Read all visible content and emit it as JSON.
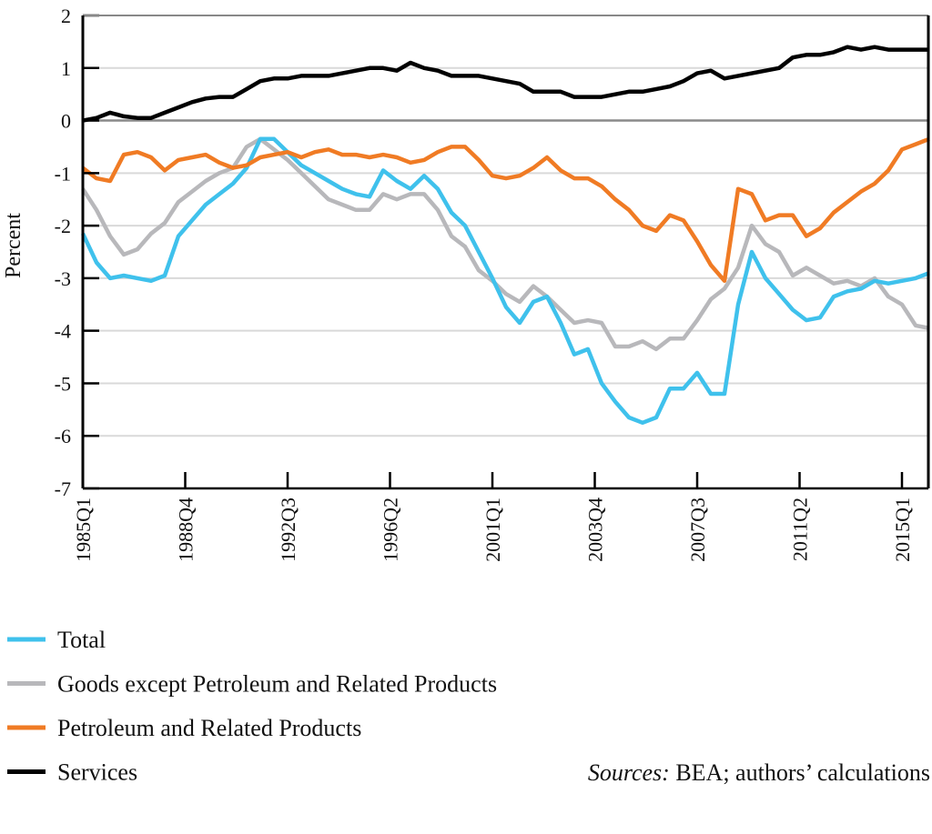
{
  "chart_data": {
    "type": "line",
    "title": "",
    "ylabel": "Percent",
    "xlabel": "",
    "ylim": [
      -7,
      2
    ],
    "yticks": [
      "2",
      "1",
      "0",
      "-1",
      "-2",
      "-3",
      "-4",
      "-5",
      "-6",
      "-7"
    ],
    "xticks": [
      "1985Q1",
      "1988Q4",
      "1992Q3",
      "1996Q2",
      "2001Q1",
      "2003Q4",
      "2007Q3",
      "2011Q2",
      "2015Q1"
    ],
    "grid": true,
    "legend_position": "bottom-left",
    "source_prefix": "Sources:",
    "source_text": " BEA; authors’ calculations",
    "x": [
      "1985Q1",
      "1985Q3",
      "1986Q1",
      "1986Q3",
      "1987Q1",
      "1987Q3",
      "1988Q1",
      "1988Q3",
      "1989Q1",
      "1989Q3",
      "1990Q1",
      "1990Q3",
      "1991Q1",
      "1991Q3",
      "1992Q1",
      "1992Q3",
      "1993Q1",
      "1993Q3",
      "1994Q1",
      "1994Q3",
      "1995Q1",
      "1995Q3",
      "1996Q1",
      "1996Q3",
      "1997Q1",
      "1997Q3",
      "1998Q1",
      "1998Q3",
      "1999Q1",
      "1999Q3",
      "2000Q1",
      "2000Q3",
      "2001Q1",
      "2001Q3",
      "2002Q1",
      "2002Q3",
      "2003Q1",
      "2003Q3",
      "2004Q1",
      "2004Q3",
      "2005Q1",
      "2005Q3",
      "2006Q1",
      "2006Q3",
      "2007Q1",
      "2007Q3",
      "2008Q1",
      "2008Q3",
      "2009Q1",
      "2009Q3",
      "2010Q1",
      "2010Q3",
      "2011Q1",
      "2011Q3",
      "2012Q1",
      "2012Q3",
      "2013Q1",
      "2013Q3",
      "2014Q1",
      "2014Q3",
      "2015Q1",
      "2015Q3",
      "2016Q1"
    ],
    "series": [
      {
        "name": "Total",
        "color": "#3fc1ec",
        "values": [
          -2.15,
          -2.7,
          -3.0,
          -2.95,
          -3.0,
          -3.05,
          -2.95,
          -2.2,
          -1.9,
          -1.6,
          -1.4,
          -1.2,
          -0.9,
          -0.35,
          -0.35,
          -0.6,
          -0.85,
          -1.0,
          -1.15,
          -1.3,
          -1.4,
          -1.45,
          -0.95,
          -1.15,
          -1.3,
          -1.05,
          -1.3,
          -1.75,
          -2.0,
          -2.5,
          -3.0,
          -3.55,
          -3.85,
          -3.45,
          -3.35,
          -3.85,
          -4.45,
          -4.35,
          -5.0,
          -5.35,
          -5.65,
          -5.75,
          -5.65,
          -5.1,
          -5.1,
          -4.8,
          -5.2,
          -5.2,
          -3.5,
          -2.5,
          -3.0,
          -3.3,
          -3.6,
          -3.8,
          -3.75,
          -3.35,
          -3.25,
          -3.2,
          -3.05,
          -3.1,
          -3.05,
          -3.0,
          -2.9
        ]
      },
      {
        "name": "Goods except Petroleum and Related Products",
        "color": "#b8b8bb",
        "values": [
          -1.3,
          -1.7,
          -2.2,
          -2.55,
          -2.45,
          -2.15,
          -1.95,
          -1.55,
          -1.35,
          -1.15,
          -1.0,
          -0.9,
          -0.5,
          -0.35,
          -0.55,
          -0.75,
          -1.0,
          -1.25,
          -1.5,
          -1.6,
          -1.7,
          -1.7,
          -1.4,
          -1.5,
          -1.4,
          -1.4,
          -1.7,
          -2.2,
          -2.4,
          -2.85,
          -3.05,
          -3.3,
          -3.45,
          -3.15,
          -3.35,
          -3.6,
          -3.85,
          -3.8,
          -3.85,
          -4.3,
          -4.3,
          -4.2,
          -4.35,
          -4.15,
          -4.15,
          -3.8,
          -3.4,
          -3.2,
          -2.8,
          -2.0,
          -2.35,
          -2.5,
          -2.95,
          -2.8,
          -2.95,
          -3.1,
          -3.05,
          -3.15,
          -3.0,
          -3.35,
          -3.5,
          -3.9,
          -3.95
        ]
      },
      {
        "name": "Petroleum and Related Products",
        "color": "#f07b24",
        "values": [
          -0.9,
          -1.1,
          -1.15,
          -0.65,
          -0.6,
          -0.7,
          -0.95,
          -0.75,
          -0.7,
          -0.65,
          -0.8,
          -0.9,
          -0.85,
          -0.7,
          -0.65,
          -0.6,
          -0.7,
          -0.6,
          -0.55,
          -0.65,
          -0.65,
          -0.7,
          -0.65,
          -0.7,
          -0.8,
          -0.75,
          -0.6,
          -0.5,
          -0.5,
          -0.75,
          -1.05,
          -1.1,
          -1.05,
          -0.9,
          -0.7,
          -0.95,
          -1.1,
          -1.1,
          -1.25,
          -1.5,
          -1.7,
          -2.0,
          -2.1,
          -1.8,
          -1.9,
          -2.3,
          -2.75,
          -3.05,
          -1.3,
          -1.4,
          -1.9,
          -1.8,
          -1.8,
          -2.2,
          -2.05,
          -1.75,
          -1.55,
          -1.35,
          -1.2,
          -0.95,
          -0.55,
          -0.45,
          -0.35
        ]
      },
      {
        "name": "Services",
        "color": "#000000",
        "values": [
          0,
          0.05,
          0.15,
          0.08,
          0.05,
          0.05,
          0.15,
          0.25,
          0.35,
          0.42,
          0.45,
          0.45,
          0.6,
          0.75,
          0.8,
          0.8,
          0.85,
          0.85,
          0.85,
          0.9,
          0.95,
          1.0,
          1.0,
          0.95,
          1.1,
          1.0,
          0.95,
          0.85,
          0.85,
          0.85,
          0.8,
          0.75,
          0.7,
          0.55,
          0.55,
          0.55,
          0.45,
          0.45,
          0.45,
          0.5,
          0.55,
          0.55,
          0.6,
          0.65,
          0.75,
          0.9,
          0.95,
          0.8,
          0.85,
          0.9,
          0.95,
          1.0,
          1.2,
          1.25,
          1.25,
          1.3,
          1.4,
          1.35,
          1.4,
          1.35,
          1.35,
          1.35,
          1.35
        ]
      }
    ]
  }
}
